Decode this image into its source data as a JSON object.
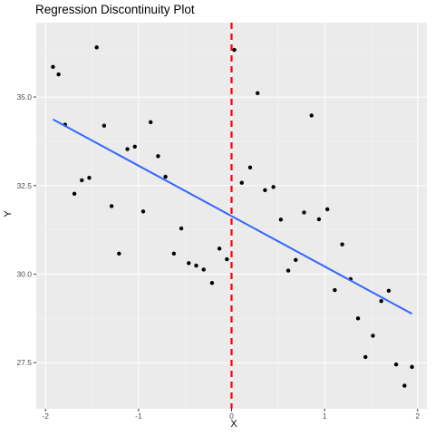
{
  "chart_data": {
    "type": "scatter",
    "title": "Regression Discontinuity Plot",
    "xlabel": "X",
    "ylabel": "Y",
    "xlim": [
      -2.1,
      2.1
    ],
    "ylim": [
      26.2,
      37.1
    ],
    "x_ticks": [
      -2,
      -1,
      0,
      1,
      2
    ],
    "y_ticks": [
      27.5,
      30.0,
      32.5,
      35.0
    ],
    "x_tick_labels": [
      "-2",
      "-1",
      "0",
      "1",
      "2"
    ],
    "y_tick_labels": [
      "27.5",
      "30.0",
      "32.5",
      "35.0"
    ],
    "grid": true,
    "background": "#ebebeb",
    "point_color": "#000000",
    "points": [
      {
        "x": -1.92,
        "y": 35.85
      },
      {
        "x": -1.86,
        "y": 35.64
      },
      {
        "x": -1.79,
        "y": 34.22
      },
      {
        "x": -1.69,
        "y": 32.27
      },
      {
        "x": -1.61,
        "y": 32.65
      },
      {
        "x": -1.53,
        "y": 32.72
      },
      {
        "x": -1.45,
        "y": 36.4
      },
      {
        "x": -1.37,
        "y": 34.19
      },
      {
        "x": -1.29,
        "y": 31.92
      },
      {
        "x": -1.21,
        "y": 30.58
      },
      {
        "x": -1.12,
        "y": 33.53
      },
      {
        "x": -1.04,
        "y": 33.6
      },
      {
        "x": -0.95,
        "y": 31.77
      },
      {
        "x": -0.87,
        "y": 34.29
      },
      {
        "x": -0.79,
        "y": 33.33
      },
      {
        "x": -0.71,
        "y": 32.75
      },
      {
        "x": -0.62,
        "y": 30.58
      },
      {
        "x": -0.54,
        "y": 31.29
      },
      {
        "x": -0.46,
        "y": 30.31
      },
      {
        "x": -0.38,
        "y": 30.24
      },
      {
        "x": -0.3,
        "y": 30.13
      },
      {
        "x": -0.21,
        "y": 29.75
      },
      {
        "x": -0.13,
        "y": 30.72
      },
      {
        "x": -0.05,
        "y": 30.42
      },
      {
        "x": 0.03,
        "y": 36.33
      },
      {
        "x": 0.11,
        "y": 32.58
      },
      {
        "x": 0.2,
        "y": 33.01
      },
      {
        "x": 0.28,
        "y": 35.11
      },
      {
        "x": 0.36,
        "y": 32.37
      },
      {
        "x": 0.45,
        "y": 32.46
      },
      {
        "x": 0.53,
        "y": 31.54
      },
      {
        "x": 0.61,
        "y": 30.1
      },
      {
        "x": 0.69,
        "y": 30.4
      },
      {
        "x": 0.78,
        "y": 31.74
      },
      {
        "x": 0.86,
        "y": 34.48
      },
      {
        "x": 0.94,
        "y": 31.55
      },
      {
        "x": 1.03,
        "y": 31.83
      },
      {
        "x": 1.11,
        "y": 29.55
      },
      {
        "x": 1.19,
        "y": 30.84
      },
      {
        "x": 1.28,
        "y": 29.86
      },
      {
        "x": 1.36,
        "y": 28.75
      },
      {
        "x": 1.44,
        "y": 27.66
      },
      {
        "x": 1.52,
        "y": 28.26
      },
      {
        "x": 1.61,
        "y": 29.24
      },
      {
        "x": 1.69,
        "y": 29.53
      },
      {
        "x": 1.77,
        "y": 27.45
      },
      {
        "x": 1.86,
        "y": 26.85
      },
      {
        "x": 1.94,
        "y": 27.38
      }
    ],
    "fit_line": {
      "color": "#3366ff",
      "x": [
        -1.92,
        1.94
      ],
      "y": [
        34.37,
        28.88
      ]
    },
    "cutoff_line": {
      "x": 0,
      "color": "#ff0000",
      "style": "dashed"
    }
  }
}
